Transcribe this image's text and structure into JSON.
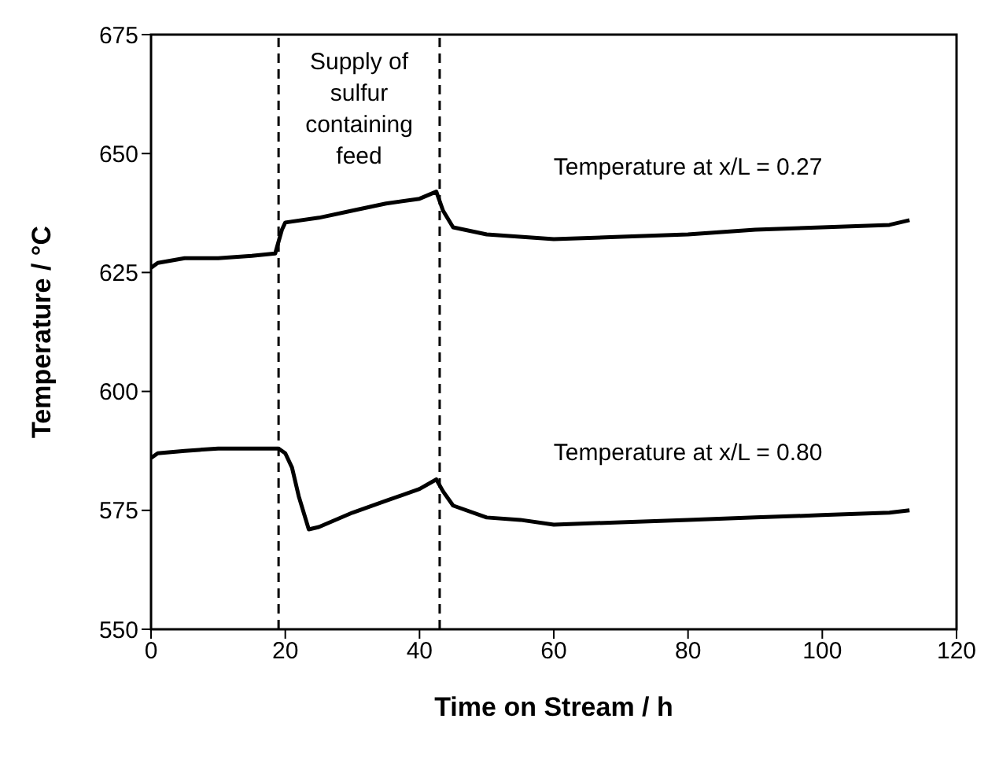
{
  "chart_data": {
    "type": "line",
    "xlabel": "Time on Stream / h",
    "ylabel": "Temperature / °C",
    "xlim": [
      0,
      120
    ],
    "xticks": [
      0,
      20,
      40,
      60,
      80,
      100,
      120
    ],
    "ylim": [
      550,
      675
    ],
    "yticks": [
      550,
      575,
      600,
      625,
      650,
      675
    ],
    "grid": false,
    "legend": false,
    "marker": "none",
    "line_style": "solid",
    "series": [
      {
        "name": "Temperature at x/L = 0.27",
        "color": "#000000",
        "x": [
          0,
          1,
          5,
          10,
          15,
          18.5,
          19.5,
          20,
          25,
          30,
          35,
          40,
          42.5,
          43.5,
          45,
          50,
          55,
          60,
          70,
          80,
          90,
          100,
          110,
          113
        ],
        "values": [
          626,
          627,
          628,
          628,
          628.5,
          629,
          634,
          635.5,
          636.5,
          638,
          639.5,
          640.5,
          642,
          638,
          634.5,
          633,
          632.5,
          632,
          632.5,
          633,
          634,
          634.5,
          635,
          636
        ]
      },
      {
        "name": "Temperature at x/L = 0.80",
        "color": "#000000",
        "x": [
          0,
          1,
          5,
          10,
          15,
          19,
          20,
          21,
          22,
          23.5,
          25,
          30,
          35,
          40,
          42.5,
          43.5,
          45,
          50,
          55,
          60,
          70,
          80,
          90,
          100,
          110,
          113
        ],
        "values": [
          586,
          587,
          587.5,
          588,
          588,
          588,
          587,
          584,
          578,
          571,
          571.5,
          574.5,
          577,
          579.5,
          581.5,
          579,
          576,
          573.5,
          573,
          572,
          572.5,
          573,
          573.5,
          574,
          574.5,
          575
        ]
      }
    ],
    "ref_lines": [
      {
        "axis": "x",
        "value": 19,
        "line_style": "dashed",
        "color": "#000000"
      },
      {
        "axis": "x",
        "value": 43,
        "line_style": "dashed",
        "color": "#000000"
      }
    ],
    "annotations": [
      "Supply of sulfur containing feed"
    ]
  }
}
